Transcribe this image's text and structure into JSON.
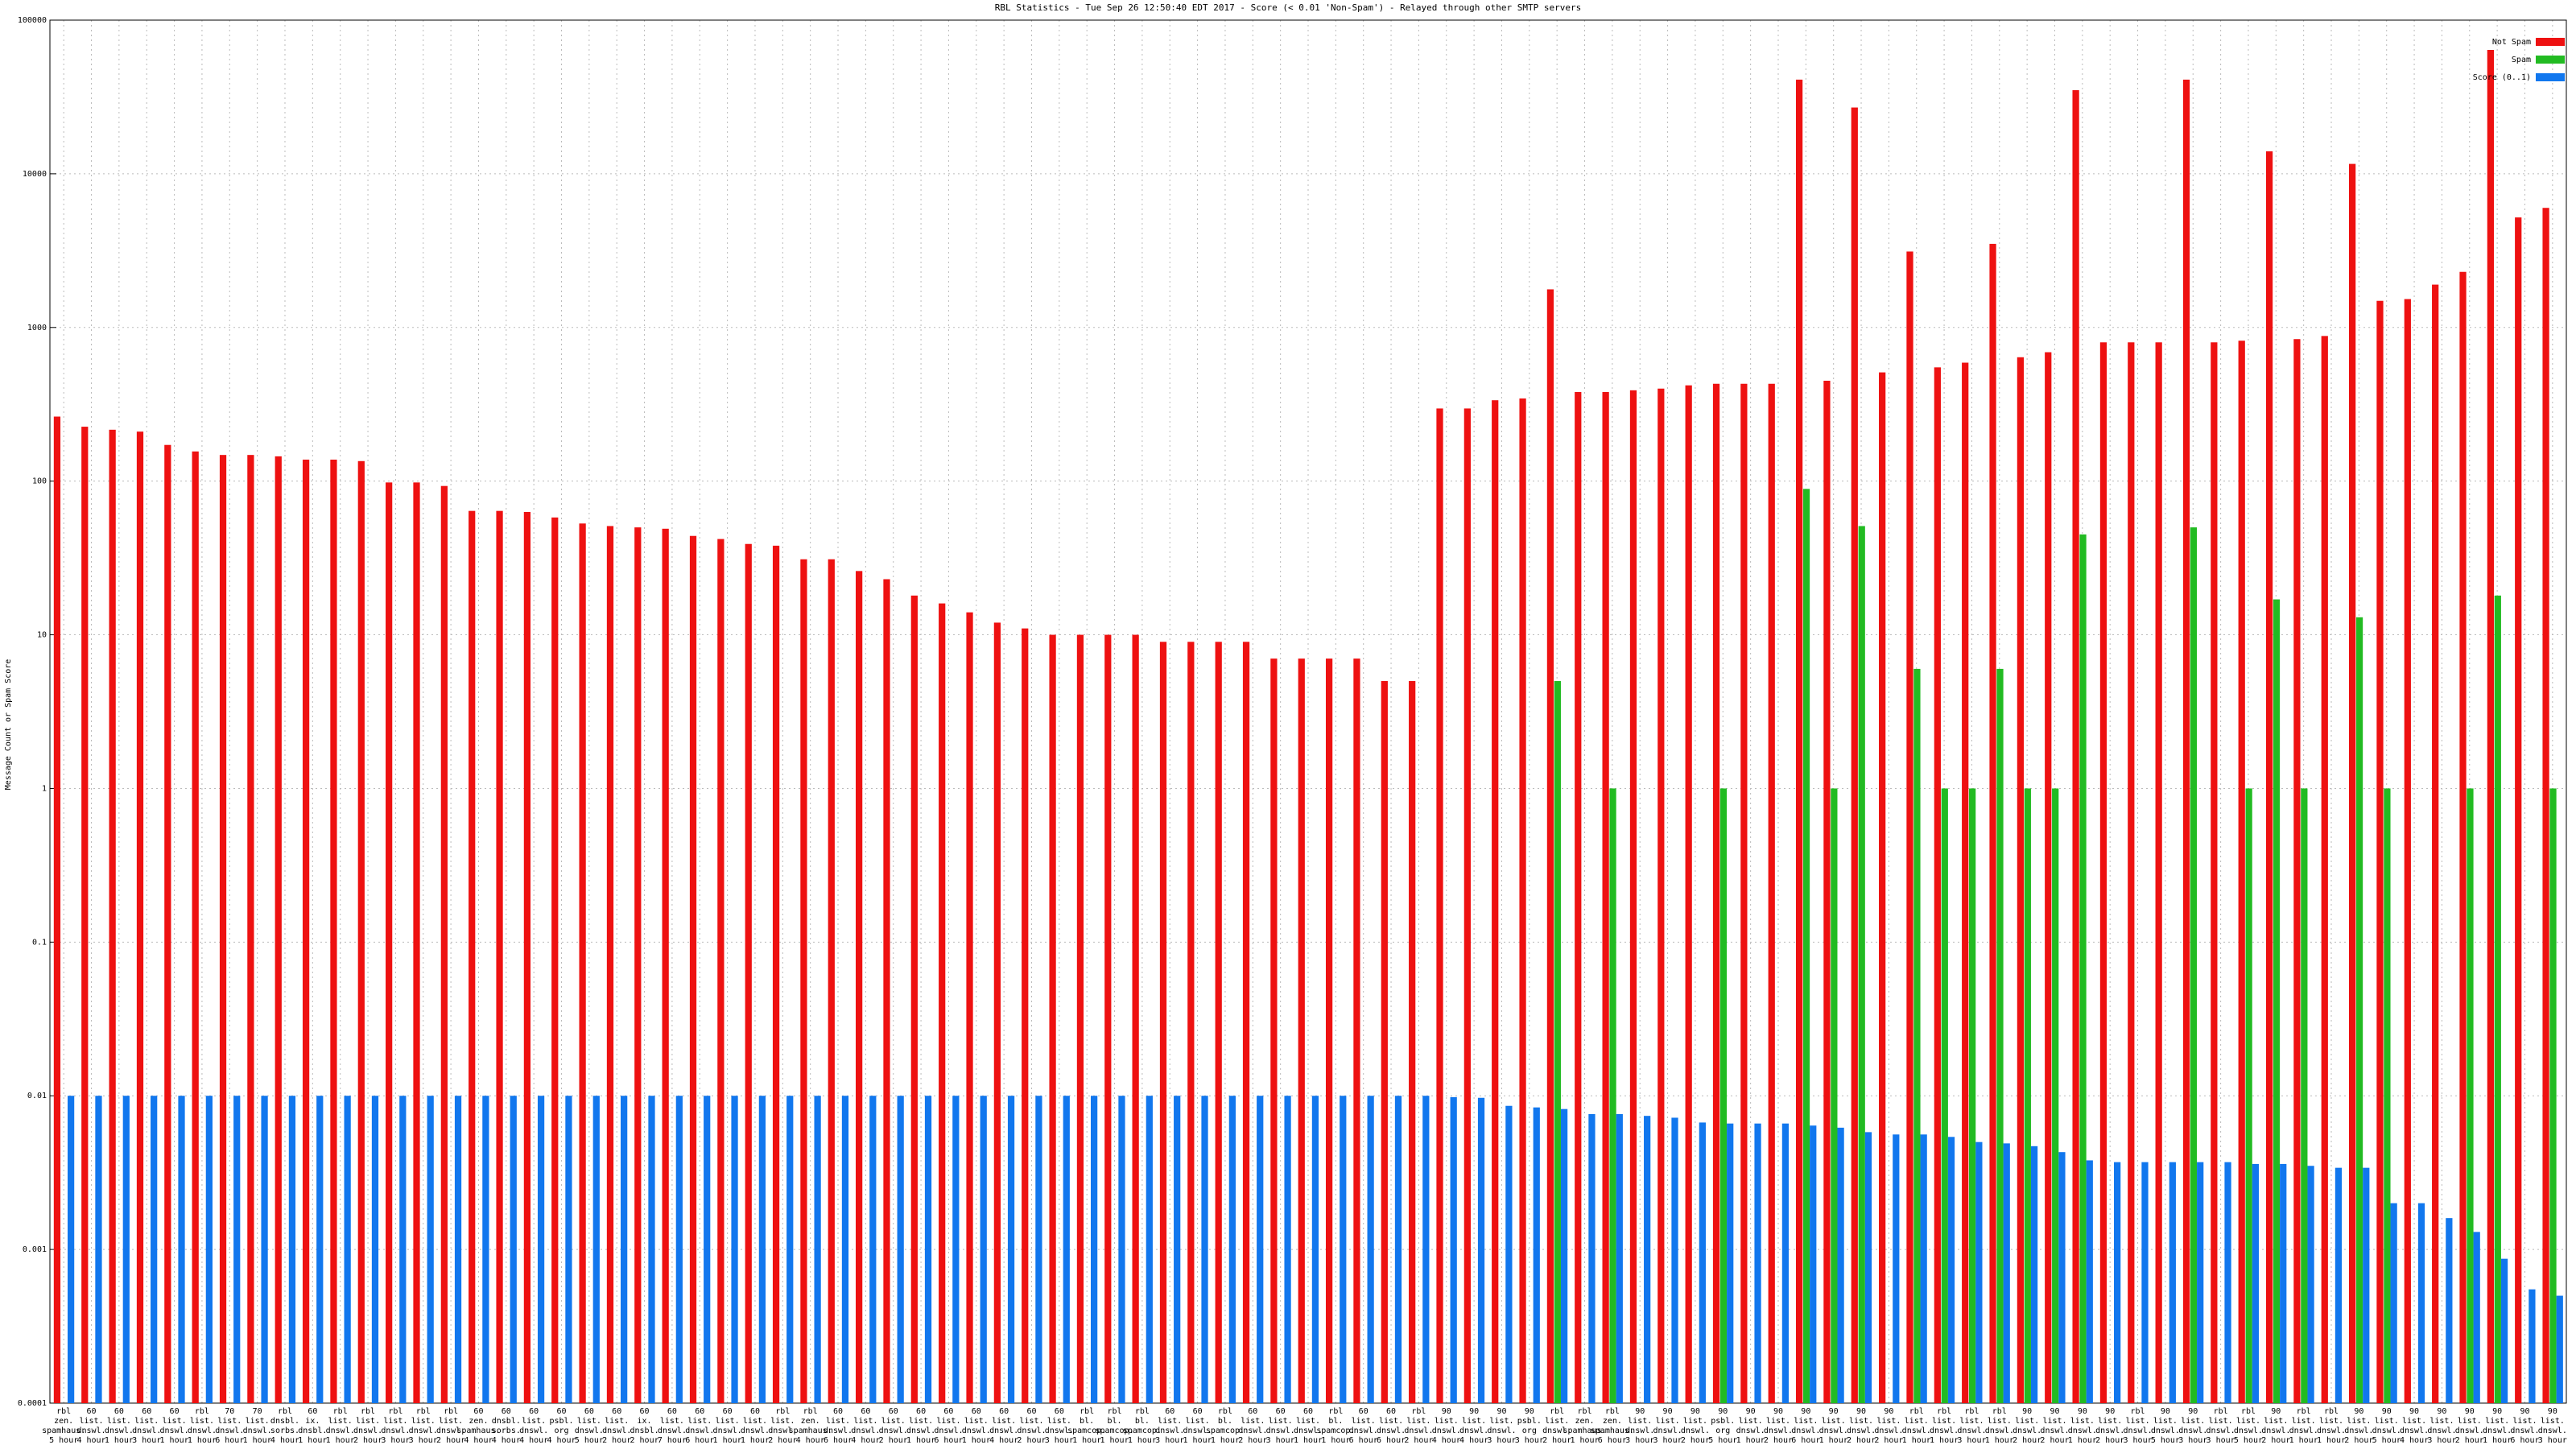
{
  "chart_data": {
    "type": "bar",
    "title": "RBL Statistics - Tue Sep 26 12:50:40 EDT 2017 - Score (< 0.01 'Non-Spam') - Relayed through other SMTP servers",
    "y_label": "Message Count or Spam Score",
    "log_scale": true,
    "grid": true,
    "legend_position": "top-right",
    "ylim": [
      0.0001,
      100000
    ],
    "yticks": [
      0.0001,
      0.001,
      0.01,
      0.1,
      1,
      10,
      100,
      1000,
      10000,
      100000
    ],
    "categories": [
      "rbl\nzen.\nspamhaus.\n5 hour",
      "60\nlist.\ndnswl.\n4 hour",
      "60\nlist.\ndnswl.\n1 hour",
      "60\nlist.\ndnswl.\n3 hour",
      "60\nlist.\ndnswl.\n1 hour",
      "rbl\nlist.\ndnswl.\n1 hour",
      "70\nlist.\ndnswl.\n6 hour",
      "70\nlist.\ndnswl.\n1 hour",
      "rbl\ndnsbl.\nsorbs.\n4 hour",
      "60\nix.\ndnsbl.\n1 hour",
      "rbl\nlist.\ndnswl.\n1 hour",
      "rbl\nlist.\ndnswl.\n2 hour",
      "rbl\nlist.\ndnswl.\n3 hour",
      "rbl\nlist.\ndnswl.\n3 hour",
      "rbl\nlist.\ndnswl.\n2 hour",
      "60\nzen.\nspamhaus.\n4 hour",
      "60\ndnsbl.\nsorbs.\n4 hour",
      "60\nlist.\ndnswl.\n4 hour",
      "60\npsbl.\norg\n4 hour",
      "60\nlist.\ndnswl.\n5 hour",
      "60\nlist.\ndnswl.\n2 hour",
      "60\nix.\ndnsbl.\n2 hour",
      "60\nlist.\ndnswl.\n7 hour",
      "60\nlist.\ndnswl.\n6 hour",
      "60\nlist.\ndnswl.\n1 hour",
      "60\nlist.\ndnswl.\n1 hour",
      "rbl\nlist.\ndnswl.\n2 hour",
      "rbl\nzen.\nspamhaus.\n4 hour",
      "60\nlist.\ndnswl.\n6 hour",
      "60\nlist.\ndnswl.\n4 hour",
      "60\nlist.\ndnswl.\n2 hour",
      "60\nlist.\ndnswl.\n1 hour",
      "60\nlist.\ndnswl.\n6 hour",
      "60\nlist.\ndnswl.\n1 hour",
      "60\nlist.\ndnswl.\n4 hour",
      "60\nlist.\ndnswl.\n2 hour",
      "60\nlist.\ndnswl.\n3 hour",
      "rbl\nbl.\nspamcop.\n1 hour",
      "rbl\nbl.\nspamcop.\n1 hour",
      "rbl\nbl.\nspamcop.\n1 hour",
      "60\nlist.\ndnswl.\n3 hour",
      "60\nlist.\ndnswl.\n1 hour",
      "rbl\nbl.\nspamcop.\n1 hour",
      "60\nlist.\ndnswl.\n2 hour",
      "60\nlist.\ndnswl.\n3 hour",
      "60\nlist.\ndnswl.\n1 hour",
      "rbl\nbl.\nspamcop.\n1 hour",
      "60\nlist.\ndnswl.\n6 hour",
      "60\nlist.\ndnswl.\n6 hour",
      "rbl\nlist.\ndnswl.\n2 hour",
      "90\nlist.\ndnswl.\n4 hour",
      "90\nlist.\ndnswl.\n4 hour",
      "90\nlist.\ndnswl.\n3 hour",
      "90\npsbl.\norg\n3 hour",
      "rbl\nlist.\ndnswl.\n2 hour",
      "rbl\nzen.\nspamhaus.\n1 hour",
      "rbl\nzen.\nspamhaus.\n6 hour",
      "90\nlist.\ndnswl.\n3 hour",
      "90\nlist.\ndnswl.\n3 hour",
      "90\nlist.\ndnswl.\n2 hour",
      "90\npsbl.\norg\n5 hour",
      "90\nlist.\ndnswl.\n1 hour",
      "90\nlist.\ndnswl.\n2 hour",
      "90\nlist.\ndnswl.\n6 hour",
      "90\nlist.\ndnswl.\n1 hour",
      "90\nlist.\ndnswl.\n2 hour",
      "90\nlist.\ndnswl.\n2 hour",
      "rbl\nlist.\ndnswl.\n1 hour",
      "rbl\nlist.\ndnswl.\n1 hour",
      "rbl\nlist.\ndnswl.\n3 hour",
      "rbl\nlist.\ndnswl.\n1 hour",
      "90\nlist.\ndnswl.\n2 hour",
      "90\nlist.\ndnswl.\n2 hour",
      "90\nlist.\ndnswl.\n1 hour",
      "90\nlist.\ndnswl.\n2 hour",
      "rbl\nlist.\ndnswl.\n3 hour",
      "90\nlist.\ndnswl.\n5 hour",
      "90\nlist.\ndnswl.\n3 hour",
      "rbl\nlist.\ndnswl.\n3 hour",
      "rbl\nlist.\ndnswl.\n5 hour",
      "90\nlist.\ndnswl.\n2 hour",
      "rbl\nlist.\ndnswl.\n1 hour",
      "rbl\nlist.\ndnswl.\n1 hour",
      "90\nlist.\ndnswl.\n2 hour",
      "90\nlist.\ndnswl.\n5 hour",
      "90\nlist.\ndnswl.\n4 hour",
      "90\nlist.\ndnswl.\n3 hour",
      "90\nlist.\ndnswl.\n2 hour",
      "90\nlist.\ndnswl.\n1 hour",
      "90\nlist.\ndnswl.\n6 hour",
      "90\nlist.\ndnswl.\n3 hour"
    ],
    "series": [
      {
        "name": "Not Spam",
        "color": "#ee1111",
        "values": [
          263,
          226,
          216,
          210,
          172,
          156,
          148,
          148,
          145,
          138,
          138,
          135,
          98,
          98,
          93,
          64,
          64,
          63,
          58,
          53,
          51,
          50,
          49,
          44,
          42,
          39,
          38,
          31,
          31,
          26,
          23,
          18,
          16,
          14,
          12,
          11,
          10,
          10,
          10,
          10,
          9,
          9,
          9,
          9,
          7,
          7,
          7,
          7,
          5,
          5,
          297,
          297,
          336,
          345,
          1770,
          380,
          380,
          390,
          400,
          420,
          430,
          430,
          430,
          41000,
          450,
          27000,
          510,
          3120,
          550,
          590,
          3500,
          640,
          690,
          35000,
          800,
          800,
          800,
          41000,
          800,
          820,
          14000,
          840,
          880,
          11600,
          1490,
          1530,
          1900,
          2300,
          64000,
          5200,
          6000
        ]
      },
      {
        "name": "Spam",
        "color": "#22bb22",
        "values": [
          null,
          null,
          null,
          null,
          null,
          null,
          null,
          null,
          null,
          null,
          null,
          null,
          null,
          null,
          null,
          null,
          null,
          null,
          null,
          null,
          null,
          null,
          null,
          null,
          null,
          null,
          null,
          null,
          null,
          null,
          null,
          null,
          null,
          null,
          null,
          null,
          null,
          null,
          null,
          null,
          null,
          null,
          null,
          null,
          null,
          null,
          null,
          null,
          null,
          null,
          null,
          null,
          null,
          null,
          5,
          null,
          1,
          null,
          null,
          null,
          1,
          null,
          null,
          89,
          1,
          51,
          null,
          6,
          1,
          1,
          6,
          1,
          1,
          45,
          null,
          null,
          null,
          50,
          null,
          1,
          17,
          1,
          null,
          13,
          1,
          null,
          null,
          1,
          18,
          null,
          1
        ]
      },
      {
        "name": "Score (0..1)",
        "color": "#1177ee",
        "values": [
          0.01,
          0.01,
          0.01,
          0.01,
          0.01,
          0.01,
          0.01,
          0.01,
          0.01,
          0.01,
          0.01,
          0.01,
          0.01,
          0.01,
          0.01,
          0.01,
          0.01,
          0.01,
          0.01,
          0.01,
          0.01,
          0.01,
          0.01,
          0.01,
          0.01,
          0.01,
          0.01,
          0.01,
          0.01,
          0.01,
          0.01,
          0.01,
          0.01,
          0.01,
          0.01,
          0.01,
          0.01,
          0.01,
          0.01,
          0.01,
          0.01,
          0.01,
          0.01,
          0.01,
          0.01,
          0.01,
          0.01,
          0.01,
          0.01,
          0.01,
          0.0098,
          0.0097,
          0.0086,
          0.0084,
          0.0082,
          0.0076,
          0.0076,
          0.0074,
          0.0072,
          0.0067,
          0.0066,
          0.0066,
          0.0066,
          0.0064,
          0.0062,
          0.0058,
          0.0056,
          0.0056,
          0.0054,
          0.005,
          0.0049,
          0.0047,
          0.0043,
          0.0038,
          0.0037,
          0.0037,
          0.0037,
          0.0037,
          0.0037,
          0.0036,
          0.0036,
          0.0035,
          0.0034,
          0.0034,
          0.002,
          0.002,
          0.0016,
          0.0013,
          0.00087,
          0.00055,
          0.0005
        ]
      }
    ]
  }
}
